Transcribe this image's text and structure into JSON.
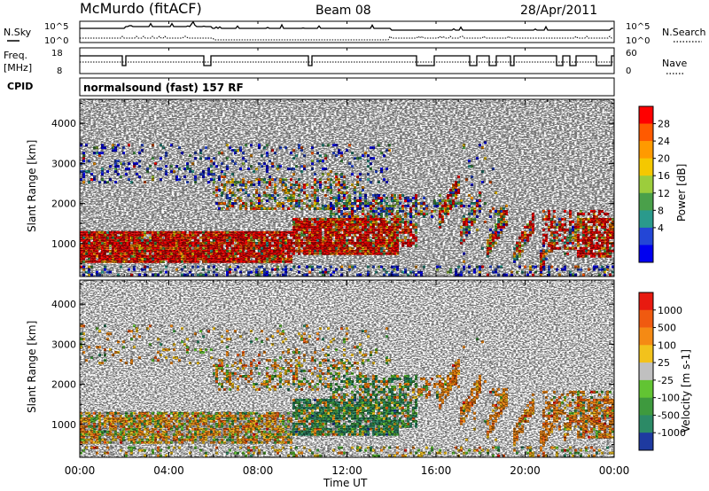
{
  "header": {
    "title": "McMurdo (fitACF)",
    "beam": "Beam 08",
    "date": "28/Apr/2011",
    "cpid_label": "CPID",
    "cpid_value": "normalsound (fast) 157 RF"
  },
  "noise_panel": {
    "left_label": "N.Sky",
    "right_label": "N.Search",
    "left_ticks": [
      "10^5",
      "10^0"
    ],
    "right_ticks": [
      "10^5",
      "10^0"
    ]
  },
  "freq_panel": {
    "left_label_1": "Freq.",
    "left_label_2": "[MHz]",
    "right_label": "Nave",
    "left_ticks": [
      "18",
      "8"
    ],
    "right_ticks": [
      "60",
      "0"
    ]
  },
  "chart_data": [
    {
      "type": "heatmap",
      "name": "power",
      "ylabel": "Slant Range [km]",
      "y_ticks": [
        1000,
        2000,
        3000,
        4000
      ],
      "ylim": [
        180,
        4600
      ],
      "colorbar_label": "Power [dB]",
      "colorbar_ticks": [
        28,
        24,
        20,
        16,
        12,
        8,
        4
      ],
      "colorbar_colors": [
        "#0000f0",
        "#2346d6",
        "#2a9a8c",
        "#4aa04a",
        "#9ccd3c",
        "#f5c800",
        "#ff9a00",
        "#ff5a00",
        "#ff0000"
      ]
    },
    {
      "type": "heatmap",
      "name": "velocity",
      "ylabel": "Slant Range [km]",
      "y_ticks": [
        1000,
        2000,
        3000,
        4000
      ],
      "ylim": [
        180,
        4600
      ],
      "colorbar_label": "Velocity [m s-1]",
      "colorbar_ticks": [
        1000,
        500,
        100,
        25,
        -25,
        -100,
        -500,
        -1000
      ],
      "colorbar_colors": [
        "#1e3aa0",
        "#2c8a66",
        "#3e9a3e",
        "#62c433",
        "#c0c0c0",
        "#f2c21c",
        "#f58a14",
        "#f05a10",
        "#e81a10"
      ]
    }
  ],
  "x_axis": {
    "label": "Time UT",
    "ticks": [
      "00:00",
      "04:00",
      "08:00",
      "12:00",
      "16:00",
      "20:00",
      "00:00"
    ]
  }
}
